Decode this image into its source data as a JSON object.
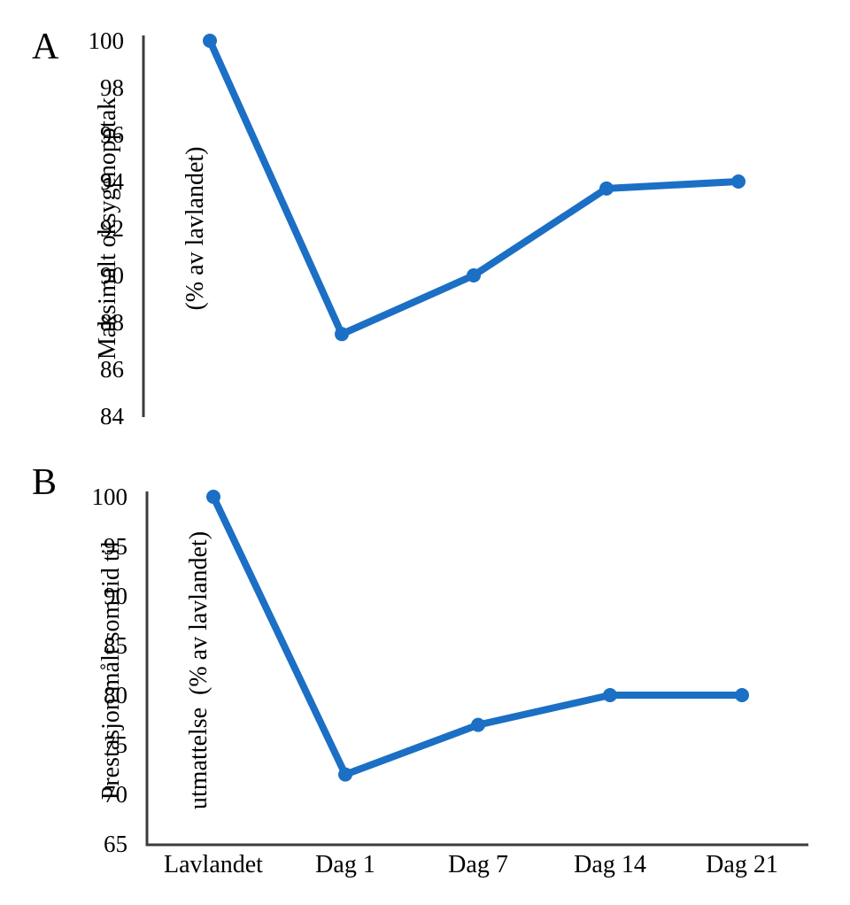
{
  "figure": {
    "background": "#ffffff",
    "line_color": "#1b6fc4",
    "axis_color": "#3c3c3c",
    "text_color": "#000000"
  },
  "chart_data": [
    {
      "type": "line",
      "panel_label": "A",
      "title": "",
      "ylabel_lines": [
        "Maksimalt oksygenopptak",
        "(% av lavlandet)"
      ],
      "categories": [
        "Lavlandet",
        "Dag 1",
        "Dag 7",
        "Dag 14",
        "Dag 21"
      ],
      "series": [
        {
          "name": "Maksimalt oksygenopptak (% av lavlandet)",
          "values": [
            100,
            87.5,
            90,
            93.7,
            94
          ]
        }
      ],
      "ylim": [
        84,
        100
      ],
      "ytick_step": 2,
      "yticks": [
        100,
        98,
        96,
        94,
        92,
        90,
        88,
        86,
        84
      ],
      "grid": false,
      "legend": false,
      "marker": "circle",
      "show_x_axis_line": false,
      "show_x_tick_labels": false
    },
    {
      "type": "line",
      "panel_label": "B",
      "title": "",
      "ylabel_lines": [
        "Prestasjon målt som tid til",
        "utmattelse  (% av lavlandet)"
      ],
      "categories": [
        "Lavlandet",
        "Dag 1",
        "Dag 7",
        "Dag 14",
        "Dag 21"
      ],
      "series": [
        {
          "name": "Prestasjon målt som tid til utmattelse (% av lavlandet)",
          "values": [
            100,
            72,
            77,
            80,
            80
          ]
        }
      ],
      "ylim": [
        65,
        100
      ],
      "ytick_step": 5,
      "yticks": [
        100,
        95,
        90,
        85,
        80,
        75,
        70,
        65
      ],
      "grid": false,
      "legend": false,
      "marker": "circle",
      "show_x_axis_line": true,
      "show_x_tick_labels": true
    }
  ]
}
